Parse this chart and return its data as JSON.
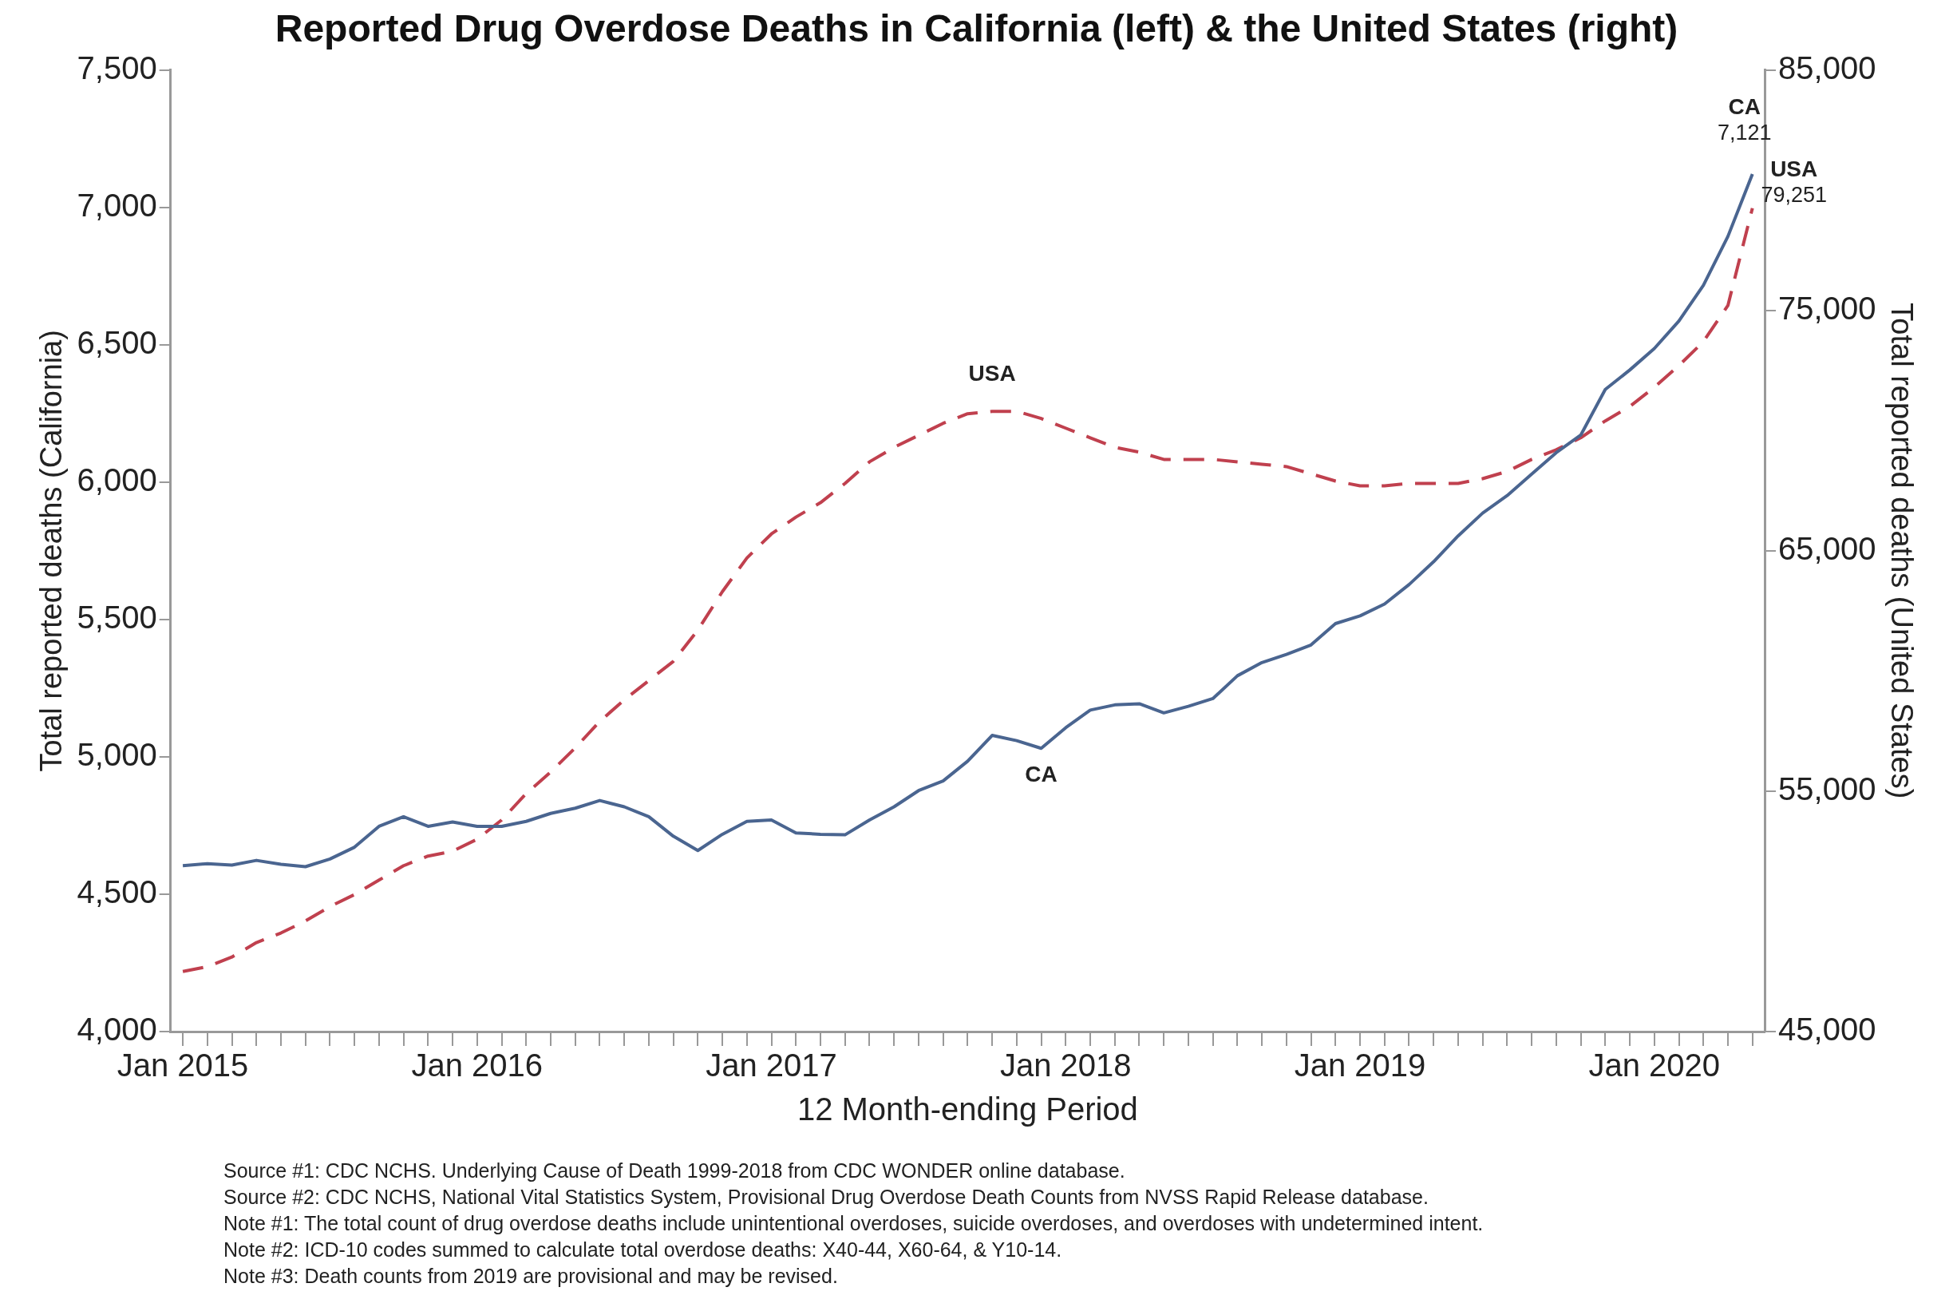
{
  "chart_data": {
    "type": "line",
    "title": "Reported Drug Overdose Deaths in California (left) & the United States (right)",
    "xlabel": "12 Month-ending Period",
    "ylabel": "Total reported deaths (California)",
    "y2label": "Total reported deaths (United States)",
    "categories": [
      "Jan 2015",
      null,
      null,
      null,
      null,
      null,
      null,
      null,
      null,
      null,
      null,
      null,
      "Jan 2016",
      null,
      null,
      null,
      null,
      null,
      null,
      null,
      null,
      null,
      null,
      null,
      "Jan 2017",
      null,
      null,
      null,
      null,
      null,
      null,
      null,
      null,
      null,
      null,
      null,
      "Jan 2018",
      null,
      null,
      null,
      null,
      null,
      null,
      null,
      null,
      null,
      null,
      null,
      "Jan 2019",
      null,
      null,
      null,
      null,
      null,
      null,
      null,
      null,
      null,
      null,
      null,
      "Jan 2020",
      null,
      null,
      null,
      null
    ],
    "series": [
      {
        "name": "CA",
        "color": "#4a6590",
        "line_style": "solid",
        "values": [
          4604,
          4611,
          4606,
          4623,
          4609,
          4600,
          4628,
          4671,
          4747,
          4782,
          4747,
          4763,
          4747,
          4747,
          4765,
          4794,
          4813,
          4841,
          4818,
          4782,
          4711,
          4659,
          4718,
          4765,
          4770,
          4723,
          4718,
          4716,
          4770,
          4818,
          4877,
          4912,
          4984,
          5078,
          5059,
          5031,
          5106,
          5170,
          5189,
          5193,
          5160,
          5184,
          5212,
          5295,
          5343,
          5373,
          5407,
          5485,
          5513,
          5556,
          5627,
          5710,
          5804,
          5887,
          5951,
          6029,
          6107,
          6171,
          6337,
          6408,
          6486,
          6586,
          6716,
          6894,
          7121
        ],
        "value_labels": [
          null,
          null,
          null,
          null,
          null,
          null,
          null,
          null,
          null,
          null,
          null,
          null,
          null,
          null,
          null,
          null,
          null,
          null,
          null,
          null,
          null,
          null,
          null,
          null,
          null,
          null,
          null,
          null,
          null,
          null,
          null,
          null,
          null,
          null,
          null,
          null,
          null,
          null,
          null,
          null,
          null,
          null,
          null,
          null,
          null,
          null,
          null,
          null,
          null,
          null,
          null,
          null,
          null,
          null,
          null,
          null,
          null,
          null,
          null,
          null,
          null,
          null,
          null,
          null,
          "7,121"
        ]
      },
      {
        "name": "USA",
        "color": "#c0404e",
        "line_style": "dashed",
        "axis": "y2",
        "values": [
          47500,
          47700,
          48100,
          48700,
          49100,
          49600,
          50200,
          50700,
          51300,
          51900,
          52300,
          52500,
          53000,
          53800,
          54900,
          55800,
          56800,
          57900,
          58800,
          59600,
          60400,
          61700,
          63300,
          64700,
          65700,
          66400,
          67000,
          67800,
          68700,
          69300,
          69800,
          70300,
          70700,
          70800,
          70800,
          70500,
          70100,
          69700,
          69300,
          69100,
          68800,
          68800,
          68800,
          68700,
          68600,
          68500,
          68200,
          67900,
          67700,
          67700,
          67800,
          67800,
          67800,
          68000,
          68300,
          68800,
          69200,
          69700,
          70400,
          71000,
          71800,
          72700,
          73700,
          75200,
          79251
        ],
        "value_labels": [
          null,
          null,
          null,
          null,
          null,
          null,
          null,
          null,
          null,
          null,
          null,
          null,
          null,
          null,
          null,
          null,
          null,
          null,
          null,
          null,
          null,
          null,
          null,
          null,
          null,
          null,
          null,
          null,
          null,
          null,
          null,
          null,
          null,
          null,
          null,
          null,
          null,
          null,
          null,
          null,
          null,
          null,
          null,
          null,
          null,
          null,
          null,
          null,
          null,
          null,
          null,
          null,
          null,
          null,
          null,
          null,
          null,
          null,
          null,
          null,
          null,
          null,
          null,
          null,
          "79,251"
        ]
      }
    ],
    "ylim": [
      4000,
      7500
    ],
    "yticks": [
      {
        "value": 4000,
        "label": "4,000"
      },
      {
        "value": 4500,
        "label": "4,500"
      },
      {
        "value": 5000,
        "label": "5,000"
      },
      {
        "value": 5500,
        "label": "5,500"
      },
      {
        "value": 6000,
        "label": "6,000"
      },
      {
        "value": 6500,
        "label": "6,500"
      },
      {
        "value": 7000,
        "label": "7,000"
      },
      {
        "value": 7500,
        "label": "7,500"
      }
    ],
    "y2lim": [
      45000,
      85000
    ],
    "y2ticks": [
      {
        "value": 45000,
        "label": "45,000"
      },
      {
        "value": 55000,
        "label": "55,000"
      },
      {
        "value": 65000,
        "label": "65,000"
      },
      {
        "value": 75000,
        "label": "75,000"
      },
      {
        "value": 85000,
        "label": "85,000"
      }
    ],
    "legend": false,
    "grid": false,
    "marker": "none",
    "annotations": [
      "Source #1: CDC NCHS. Underlying Cause of Death 1999-2018 from CDC WONDER online database.",
      "Source #2: CDC NCHS, National Vital Statistics System, Provisional Drug Overdose Death Counts from NVSS Rapid Release database.",
      "Note #1: The total count of drug overdose deaths include unintentional overdoses, suicide overdoses, and overdoses with undetermined intent.",
      "Note #2: ICD-10 codes summed to calculate total overdose deaths: X40-44, X60-64, & Y10-14.",
      "Note #3: Death counts from 2019 are provisional and may be revised."
    ]
  }
}
